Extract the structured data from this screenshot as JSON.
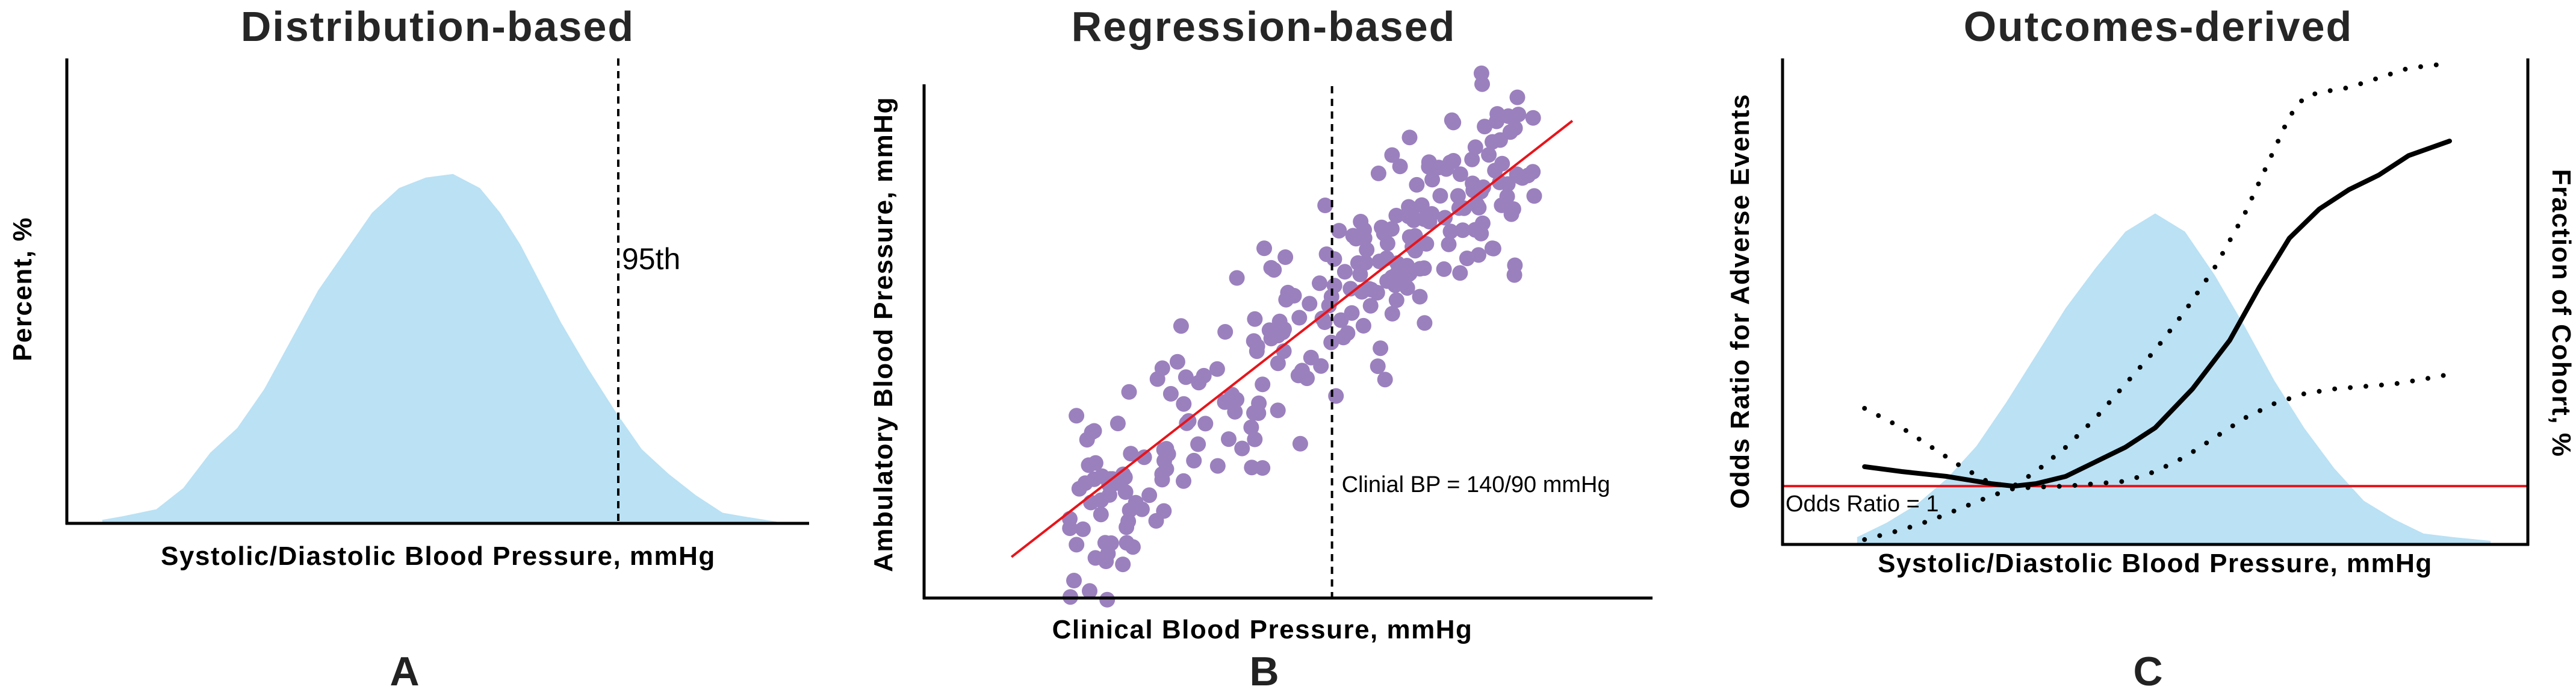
{
  "figure": {
    "panels": [
      "A",
      "B",
      "C"
    ]
  },
  "chart_data": [
    {
      "panel": "A",
      "type": "area",
      "title": "Distribution-based",
      "xlabel": "Systolic/Diastolic Blood Pressure, mmHg",
      "ylabel": "Percent, %",
      "xlim": [
        0,
        100
      ],
      "ylim": [
        0,
        100
      ],
      "grid": false,
      "fill_color": "#bae1f4",
      "series": [
        {
          "name": "distribution",
          "x": [
            0,
            3,
            8,
            12,
            16,
            20,
            24,
            28,
            32,
            36,
            40,
            44,
            48,
            52,
            56,
            59,
            62,
            65,
            68,
            72,
            76,
            80,
            84,
            88,
            92,
            95,
            100
          ],
          "y": [
            1,
            2,
            4,
            10,
            20,
            27,
            38,
            52,
            66,
            77,
            88,
            95,
            98,
            99,
            95,
            88,
            79,
            68,
            57,
            44,
            32,
            21,
            14,
            8,
            3,
            2,
            0.5
          ]
        }
      ],
      "vline": {
        "x": 76,
        "style": "dashed",
        "color": "#000000",
        "label": "95th"
      }
    },
    {
      "panel": "B",
      "type": "scatter",
      "title": "Regression-based",
      "xlabel": "Clinical Blood Pressure, mmHg",
      "ylabel": "Ambulatory Blood Pressure, mmHg",
      "xlim": [
        0,
        100
      ],
      "ylim": [
        0,
        100
      ],
      "grid": false,
      "point_color": "#9b80be",
      "regression_line": {
        "color": "#e8141a",
        "x": [
          12,
          89
        ],
        "y": [
          8,
          93
        ]
      },
      "vline": {
        "x": 56,
        "style": "dashed",
        "color": "#000000",
        "label": "Clinial BP = 140/90 mmHg"
      },
      "point_cloud": {
        "count": 260,
        "x_range": [
          20,
          84
        ],
        "slope": 1.1,
        "spread": 11
      }
    },
    {
      "panel": "C",
      "type": "line",
      "title": "Outcomes-derived",
      "xlabel": "Systolic/Diastolic Blood Pressure, mmHg",
      "ylabel": "Odds Ratio for Adverse Events",
      "y2label": "Fraction of Cohort, %",
      "xlim": [
        0,
        100
      ],
      "ylim": [
        0,
        100
      ],
      "grid": false,
      "reference_line": {
        "y": 12,
        "color": "#e8141a",
        "label": "Odds Ratio = 1"
      },
      "background_distribution": {
        "fill_color": "#bae1f4",
        "x": [
          10,
          14,
          18,
          22,
          26,
          30,
          34,
          38,
          42,
          46,
          50,
          54,
          58,
          62,
          66,
          70,
          74,
          78,
          82,
          86,
          90,
          95,
          89.8
        ],
        "y": [
          2,
          6,
          11,
          18,
          27,
          39,
          52,
          65,
          76,
          86,
          91,
          86,
          74,
          60,
          45,
          32,
          21,
          12,
          7,
          3,
          2,
          1,
          0
        ]
      },
      "series": [
        {
          "name": "odds-ratio",
          "style": "solid",
          "x": [
            11,
            16,
            22,
            28,
            31,
            34,
            38,
            42,
            46,
            50,
            55,
            60,
            64,
            68,
            72,
            76,
            80,
            84,
            89.5
          ],
          "y": [
            16,
            15,
            14,
            12.5,
            12,
            12.5,
            14,
            17,
            20,
            24,
            32,
            42,
            53,
            63,
            69,
            73,
            76,
            80,
            83
          ]
        },
        {
          "name": "upper-ci",
          "style": "dotted",
          "x": [
            11,
            16,
            20,
            24,
            28,
            31,
            34,
            38,
            42,
            46,
            50,
            54,
            58,
            62,
            65,
            68,
            70,
            72,
            76,
            80,
            84,
            89.5
          ],
          "y": [
            28,
            24,
            20,
            16,
            12.5,
            12,
            15,
            20,
            26,
            33,
            40,
            48,
            57,
            68,
            78,
            88,
            92,
            93,
            94,
            96,
            98,
            99
          ]
        },
        {
          "name": "lower-ci",
          "style": "dotted",
          "x": [
            11,
            16,
            20,
            24,
            28,
            31,
            34,
            38,
            42,
            46,
            50,
            54,
            58,
            62,
            66,
            70,
            74,
            78,
            82,
            86,
            89.5
          ],
          "y": [
            1,
            3,
            5,
            7.5,
            10,
            11.5,
            11.8,
            12,
            12.5,
            13,
            15,
            18,
            22,
            26,
            29,
            31,
            32,
            32.5,
            33,
            34,
            35
          ]
        }
      ]
    }
  ]
}
